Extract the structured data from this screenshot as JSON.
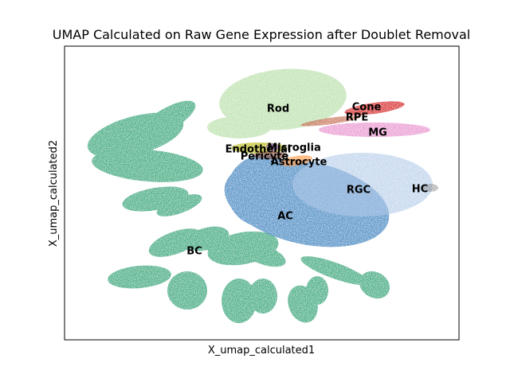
{
  "chart_data": {
    "type": "scatter",
    "title": "UMAP Calculated on Raw Gene Expression after Doublet Removal",
    "xlabel": "X_umap_calculated1",
    "ylabel": "X_umap_calculated2",
    "xticks": "none",
    "yticks": "none",
    "grid": false,
    "legend": "on data",
    "clusters": [
      {
        "name": "Rod",
        "color": "#b5dea5"
      },
      {
        "name": "Cone",
        "color": "#d62728"
      },
      {
        "name": "RPE",
        "color": "#c8735a"
      },
      {
        "name": "MG",
        "color": "#e377c2"
      },
      {
        "name": "Microglia",
        "color": "#9467bd"
      },
      {
        "name": "Endothelial",
        "color": "#bcbd22"
      },
      {
        "name": "Pericyte",
        "color": "#8c564b"
      },
      {
        "name": "Astrocyte",
        "color": "#ff9f50"
      },
      {
        "name": "RGC",
        "color": "#aec7e8"
      },
      {
        "name": "HC",
        "color": "#7f7f7f"
      },
      {
        "name": "AC",
        "color": "#3a7fbd"
      },
      {
        "name": "BC",
        "color": "#3aa57a"
      }
    ]
  }
}
